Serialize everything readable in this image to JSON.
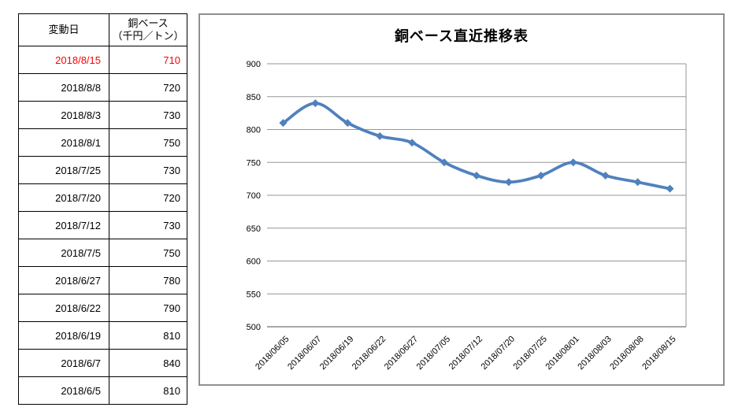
{
  "table": {
    "header": {
      "date": "変動日",
      "value_line1": "銅ベース",
      "value_line2": "（千円／トン）"
    },
    "highlight_color": "#FF0000",
    "rows": [
      {
        "date": "2018/8/15",
        "value": "710"
      },
      {
        "date": "2018/8/8",
        "value": "720"
      },
      {
        "date": "2018/8/3",
        "value": "730"
      },
      {
        "date": "2018/8/1",
        "value": "750"
      },
      {
        "date": "2018/7/25",
        "value": "730"
      },
      {
        "date": "2018/7/20",
        "value": "720"
      },
      {
        "date": "2018/7/12",
        "value": "730"
      },
      {
        "date": "2018/7/5",
        "value": "750"
      },
      {
        "date": "2018/6/27",
        "value": "780"
      },
      {
        "date": "2018/6/22",
        "value": "790"
      },
      {
        "date": "2018/6/19",
        "value": "810"
      },
      {
        "date": "2018/6/7",
        "value": "840"
      },
      {
        "date": "2018/6/5",
        "value": "810"
      }
    ]
  },
  "chart_data": {
    "type": "line",
    "title": "銅ベース直近推移表",
    "categories": [
      "2018/06/05",
      "2018/06/07",
      "2018/06/19",
      "2018/06/22",
      "2018/06/27",
      "2018/07/05",
      "2018/07/12",
      "2018/07/20",
      "2018/07/25",
      "2018/08/01",
      "2018/08/03",
      "2018/08/08",
      "2018/08/15"
    ],
    "values": [
      810,
      840,
      810,
      790,
      780,
      750,
      730,
      720,
      730,
      750,
      730,
      720,
      710
    ],
    "yticks": [
      900,
      850,
      800,
      750,
      700,
      650,
      600,
      550,
      500
    ],
    "ylim": [
      500,
      900
    ],
    "ytick_step": 50,
    "xlabel": "",
    "ylabel": "",
    "grid": true,
    "legend": "none",
    "smoothed": true,
    "marker": "diamond",
    "line_color": "#4F81BD",
    "gridline_color": "#969696",
    "axis_color": "#8C8C8C"
  }
}
